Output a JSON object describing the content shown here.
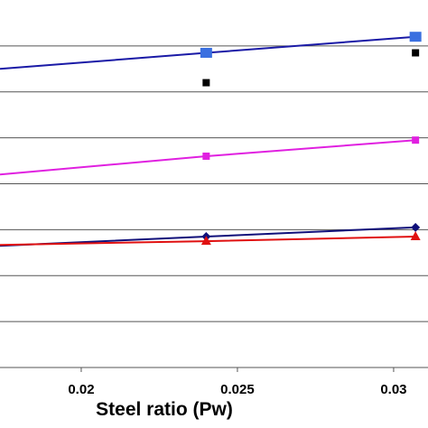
{
  "chart_data": {
    "type": "line",
    "title": "",
    "xlabel": "Steel ratio (Pw)",
    "ylabel": "",
    "xlim": [
      0.0174,
      0.0311
    ],
    "ylim": [
      0,
      8
    ],
    "x_ticks": [
      "0.02",
      "0.025",
      "0.03"
    ],
    "y_gridlines": [
      1,
      2,
      3,
      4,
      5,
      6,
      7
    ],
    "grid": true,
    "series": [
      {
        "color": "#1a1aa6",
        "marker": "square",
        "marker_color": "#3a6fe0",
        "x": [
          0.0174,
          0.024,
          0.0307
        ],
        "y": [
          6.5,
          6.85,
          7.2
        ],
        "marker_x": [
          0.024,
          0.0307
        ]
      },
      {
        "color": "#000000",
        "marker": "square-small",
        "line": false,
        "x": [
          0.024,
          0.0307
        ],
        "y": [
          6.2,
          6.85
        ],
        "marker_x": [
          0.024,
          0.0307
        ]
      },
      {
        "color": "#e020e0",
        "marker": "square-small",
        "x": [
          0.0174,
          0.024,
          0.0307
        ],
        "y": [
          4.2,
          4.6,
          4.95
        ],
        "marker_x": [
          0.024,
          0.0307
        ]
      },
      {
        "color": "#10107a",
        "marker": "diamond",
        "x": [
          0.0174,
          0.024,
          0.0307
        ],
        "y": [
          2.65,
          2.85,
          3.05
        ],
        "marker_x": [
          0.024,
          0.0307
        ]
      },
      {
        "color": "#e01010",
        "marker": "triangle",
        "x": [
          0.0174,
          0.024,
          0.0307
        ],
        "y": [
          2.67,
          2.75,
          2.85
        ],
        "marker_x": [
          0.024,
          0.0307
        ]
      }
    ]
  }
}
